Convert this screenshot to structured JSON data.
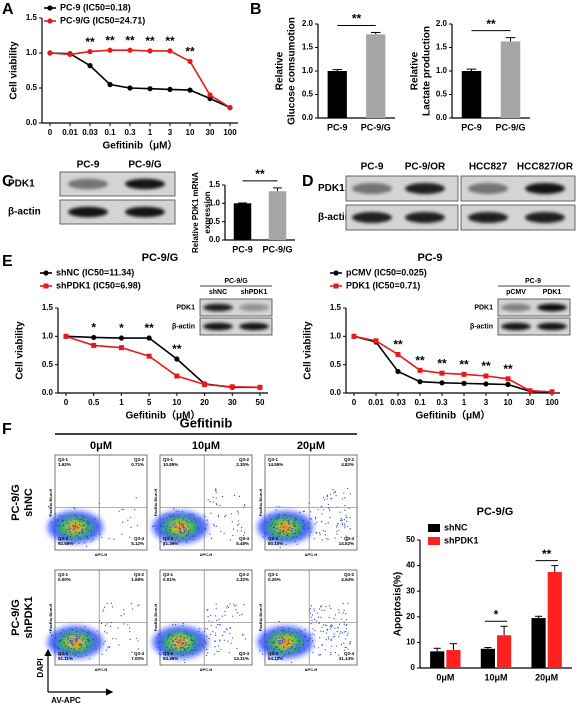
{
  "panel_labels": [
    "A",
    "B",
    "C",
    "D",
    "E",
    "F"
  ],
  "chart_data": [
    {
      "type": "line",
      "xlabel": "Gefitinib（μM）",
      "ylabel": "Cell viability",
      "categories": [
        "0",
        "0.01",
        "0.03",
        "0.1",
        "0.3",
        "1",
        "3",
        "10",
        "30",
        "100"
      ],
      "series": [
        {
          "name": "PC-9 (IC50=0.18)",
          "color": "#000000",
          "marker": "circle",
          "values": [
            1.0,
            0.99,
            0.82,
            0.55,
            0.5,
            0.49,
            0.48,
            0.47,
            0.35,
            0.22
          ]
        },
        {
          "name": "PC-9/G (IC50=24.71)",
          "color": "#e41a1c",
          "marker": "circle",
          "values": [
            1.0,
            0.98,
            1.02,
            1.04,
            1.04,
            1.03,
            1.03,
            0.88,
            0.4,
            0.22
          ]
        }
      ],
      "significance": [
        null,
        null,
        "**",
        "**",
        "**",
        "**",
        "**",
        "**",
        null,
        null
      ],
      "ylim": [
        0,
        1.5
      ],
      "yticks": [
        {
          "value": 0,
          "label": "0.0"
        },
        0.5,
        {
          "value": 1,
          "label": "1.0"
        },
        1.5
      ]
    },
    {
      "type": "bar",
      "ylabel": [
        "Relative",
        "Glucose comsumotion"
      ],
      "categories": [
        "PC-9",
        "PC-9/G"
      ],
      "values": [
        1.0,
        1.78
      ],
      "errors": [
        0.03,
        0.04
      ],
      "colors": [
        "#000000",
        "#a6a6a6"
      ],
      "significance": "**",
      "ylim": [
        0,
        2
      ],
      "yticks": [
        {
          "value": 0,
          "label": "0.0"
        },
        0.5,
        {
          "value": 1,
          "label": "1.0"
        },
        1.5,
        {
          "value": 2,
          "label": "2.0"
        }
      ]
    },
    {
      "type": "bar",
      "ylabel": [
        "Relative",
        "Lactate production"
      ],
      "categories": [
        "PC-9",
        "PC-9/G"
      ],
      "values": [
        1.0,
        1.63
      ],
      "errors": [
        0.04,
        0.08
      ],
      "colors": [
        "#000000",
        "#a6a6a6"
      ],
      "significance": "**",
      "ylim": [
        0,
        2
      ],
      "yticks": [
        {
          "value": 0,
          "label": "0.0"
        },
        0.5,
        {
          "value": 1,
          "label": "1.0"
        },
        1.5,
        {
          "value": 2,
          "label": "2.0"
        }
      ]
    },
    {
      "type": "bar",
      "ylabel": [
        "Relative PDK1 mRNA",
        "expression"
      ],
      "categories": [
        "PC-9",
        "PC-9/G"
      ],
      "values": [
        1.0,
        1.33
      ],
      "errors": [
        0.01,
        0.09
      ],
      "colors": [
        "#000000",
        "#a6a6a6"
      ],
      "significance": "**",
      "ylim": [
        0,
        1.5
      ],
      "yticks": [
        {
          "value": 0,
          "label": "0.0"
        },
        0.5,
        {
          "value": 1,
          "label": "1.0"
        },
        1.5
      ]
    },
    {
      "type": "line",
      "title": "PC-9/G",
      "xlabel": "Gefitinib（μM）",
      "ylabel": "Cell viability",
      "categories": [
        "0",
        "0.5",
        "1",
        "5",
        "10",
        "20",
        "30",
        "50"
      ],
      "series": [
        {
          "name": "shNC (IC50=11.34)",
          "color": "#000000",
          "marker": "circle",
          "values": [
            1.0,
            0.98,
            0.97,
            0.97,
            0.6,
            0.16,
            0.1,
            0.1
          ]
        },
        {
          "name": "shPDK1 (IC50=6.98)",
          "color": "#e41a1c",
          "marker": "square",
          "values": [
            1.0,
            0.84,
            0.8,
            0.65,
            0.3,
            0.15,
            0.11,
            0.1
          ]
        }
      ],
      "significance": [
        null,
        "*",
        "*",
        "**",
        "**",
        null,
        null,
        null
      ],
      "ylim": [
        0,
        1.5
      ],
      "yticks": [
        {
          "value": 0,
          "label": "0.0"
        },
        0.5,
        {
          "value": 1,
          "label": "1.0"
        },
        1.5
      ]
    },
    {
      "type": "line",
      "title": "PC-9",
      "xlabel": "Gefitinib（μM）",
      "ylabel": "Cell viability",
      "categories": [
        "0",
        "0.01",
        "0.03",
        "0.1",
        "0.3",
        "1",
        "3",
        "10",
        "30",
        "100"
      ],
      "series": [
        {
          "name": "pCMV (IC50=0.025)",
          "color": "#000000",
          "marker": "circle",
          "values": [
            1.0,
            0.9,
            0.38,
            0.2,
            0.18,
            0.17,
            0.16,
            0.15,
            0.03,
            0.02
          ]
        },
        {
          "name": "PDK1 (IC50=0.71)",
          "color": "#e41a1c",
          "marker": "square",
          "values": [
            1.0,
            0.92,
            0.68,
            0.4,
            0.35,
            0.33,
            0.3,
            0.25,
            0.04,
            0.02
          ]
        }
      ],
      "significance": [
        null,
        null,
        "**",
        "**",
        "**",
        "**",
        "**",
        "**",
        null,
        null
      ],
      "ylim": [
        0,
        1.5
      ],
      "yticks": [
        {
          "value": 0,
          "label": "0.0"
        },
        0.5,
        {
          "value": 1,
          "label": "1.0"
        },
        1.5
      ]
    },
    {
      "type": "bar",
      "title": "PC-9/G",
      "ylabel": "Apoptosis(%)",
      "categories": [
        "0μM",
        "10μM",
        "20μM"
      ],
      "series": [
        {
          "name": "shNC",
          "color": "#000000",
          "values": [
            6.5,
            7.5,
            19.5
          ],
          "errors": [
            1.2,
            0.5,
            0.7
          ]
        },
        {
          "name": "shPDK1",
          "color": "#ff2020",
          "values": [
            7,
            12.8,
            37.5
          ],
          "errors": [
            2.5,
            3.5,
            2.5
          ]
        }
      ],
      "significance": [
        null,
        "*",
        "**"
      ],
      "ylim": [
        0,
        50
      ],
      "yticks": [
        0,
        10,
        20,
        30,
        40,
        50
      ]
    }
  ],
  "blots": [
    {
      "lanes": [
        "PC-9",
        "PC-9/G"
      ],
      "rows": [
        "PDK1",
        "β-actin"
      ]
    },
    {
      "lanes": [
        "PC-9",
        "PC-9/OR",
        "HCC827",
        "HCC827/OR"
      ],
      "rows": [
        "PDK1",
        "β-actin"
      ]
    },
    {
      "title": "PC-9/G",
      "lanes": [
        "shNC",
        "shPDK1"
      ],
      "rows": [
        "PDK1",
        "β-actin"
      ]
    },
    {
      "title": "PC-9",
      "lanes": [
        "pCMV",
        "PDK1"
      ],
      "rows": [
        "PDK1",
        "β-actin"
      ]
    }
  ],
  "flow": {
    "title": "Gefitinib",
    "columns": [
      "0μM",
      "10μM",
      "20μM"
    ],
    "rows": [
      [
        "PC-9/G",
        "shNC"
      ],
      [
        "PC-9/G",
        "shPDK1"
      ]
    ],
    "quadrant_names": [
      "Q3-1",
      "Q3-2",
      "Q3-3",
      "Q3-4"
    ],
    "quadrant_values": [
      [
        [
          "1.62%",
          "0.71%",
          "92.56%",
          "5.12%"
        ],
        [
          "10.85%",
          "2.30%",
          "81.36%",
          "5.48%"
        ],
        [
          "14.55%",
          "4.82%",
          "80.10%",
          "14.52%"
        ]
      ],
      [
        [
          "0.00%",
          "1.68%",
          "91.11%",
          "7.00%"
        ],
        [
          "0.01%",
          "2.32%",
          "84.36%",
          "13.31%"
        ],
        [
          "0.25%",
          "4.54%",
          "64.12%",
          "31.14%"
        ]
      ]
    ],
    "plot_x_axis": "APC-H",
    "plot_y_axis": "PacBlu Blue-H",
    "y_label": "DAPI",
    "x_label": "AV-APC"
  }
}
